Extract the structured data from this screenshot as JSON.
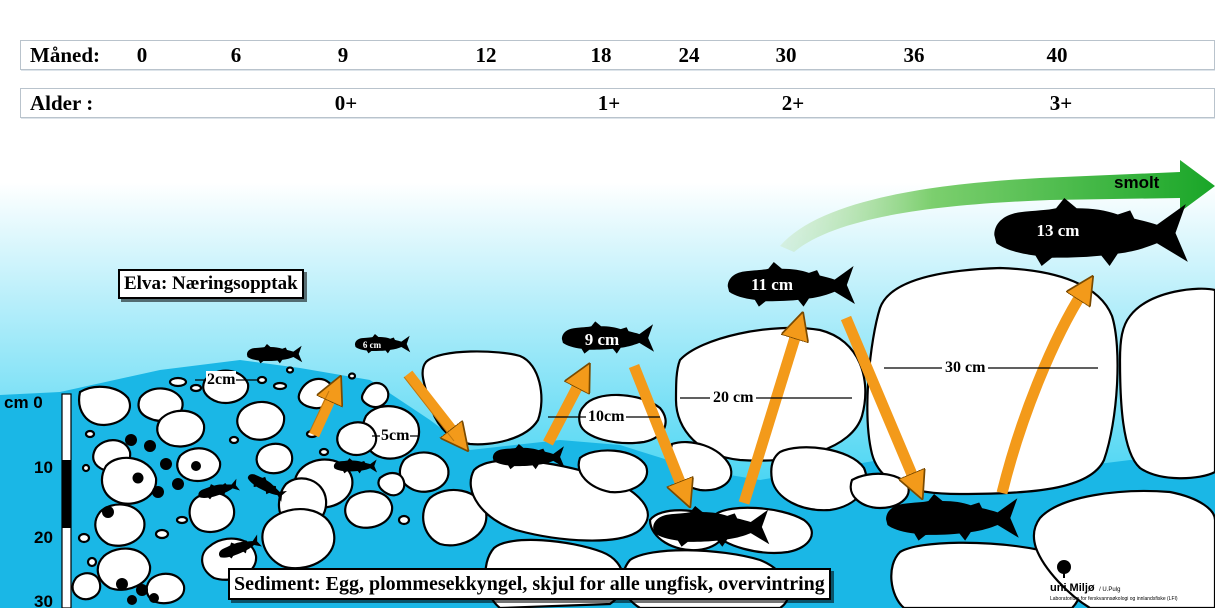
{
  "timeline": {
    "month_label": "Måned:",
    "months": [
      "0",
      "6",
      "9",
      "12",
      "18",
      "24",
      "30",
      "36",
      "40"
    ],
    "age_label": "Alder :",
    "ages": [
      "0+",
      "1+",
      "2+",
      "3+"
    ]
  },
  "zones": {
    "river": "Elva: Næringsopptak",
    "sediment": "Sediment: Egg, plommesekkyngel, skjul for alle ungfisk, overvintring"
  },
  "stones": [
    "2cm",
    "5cm",
    "10cm",
    "20 cm",
    "30 cm"
  ],
  "fish_lengths": [
    "6 cm",
    "9 cm",
    "11 cm",
    "13 cm"
  ],
  "smolt": "smolt",
  "depth_scale": {
    "unit_label": "cm 0",
    "ticks": [
      "10",
      "20",
      "30"
    ]
  },
  "logo": {
    "name": "uni Miljø",
    "author": "/ U.Pulg",
    "subtitle": "Laboratorium for ferskvannsøkologi og innlandsfiske (LFI)"
  },
  "colors": {
    "water_top": "#ffffff",
    "water_bottom": "#00c6ef",
    "sediment": "#19b8e6",
    "stone": "#ffffff",
    "arrow": "#f39a1a",
    "smolt_arrow": "#1faa2e",
    "fish": "#000000"
  }
}
